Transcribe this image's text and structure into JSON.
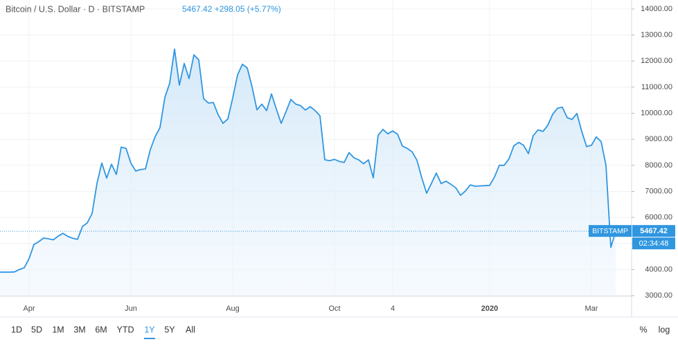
{
  "header": {
    "title": "Bitcoin / U.S. Dollar · D · BITSTAMP",
    "readout": "5467.42  +298.05 (+5.77%)"
  },
  "chart_data": {
    "type": "area",
    "color": "#2f96e0",
    "grid": true,
    "categories": [
      null,
      null,
      null,
      null,
      null,
      null,
      "Apr",
      null,
      null,
      null,
      null,
      null,
      null,
      null,
      null,
      null,
      null,
      null,
      null,
      null,
      null,
      null,
      null,
      null,
      null,
      null,
      null,
      "Jun",
      null,
      null,
      null,
      null,
      null,
      null,
      null,
      null,
      null,
      null,
      null,
      null,
      null,
      null,
      null,
      null,
      null,
      null,
      null,
      null,
      "Aug",
      null,
      null,
      null,
      null,
      null,
      null,
      null,
      null,
      null,
      null,
      null,
      null,
      null,
      null,
      null,
      null,
      null,
      null,
      null,
      null,
      "Oct",
      null,
      null,
      null,
      null,
      null,
      null,
      null,
      null,
      null,
      null,
      null,
      "4",
      null,
      null,
      null,
      null,
      null,
      null,
      null,
      null,
      null,
      null,
      null,
      null,
      null,
      null,
      null,
      null,
      null,
      null,
      null,
      "2020",
      null,
      null,
      null,
      null,
      null,
      null,
      null,
      null,
      null,
      null,
      null,
      null,
      null,
      null,
      null,
      null,
      null,
      null,
      null,
      null,
      "Mar",
      null,
      null,
      null,
      null,
      null
    ],
    "values": [
      3900,
      3900,
      3900,
      3910,
      4000,
      4070,
      4420,
      4960,
      5070,
      5210,
      5180,
      5140,
      5280,
      5390,
      5270,
      5200,
      5160,
      5650,
      5790,
      6150,
      7300,
      8090,
      7510,
      8040,
      7650,
      8700,
      8650,
      8080,
      7780,
      7840,
      7860,
      8600,
      9100,
      9450,
      10600,
      11150,
      12460,
      11080,
      11910,
      11330,
      12240,
      12050,
      10560,
      10390,
      10410,
      9940,
      9610,
      9780,
      10580,
      11470,
      11880,
      11740,
      11010,
      10130,
      10350,
      10100,
      10740,
      10160,
      9610,
      10060,
      10530,
      10350,
      10290,
      10120,
      10250,
      10100,
      9900,
      8210,
      8180,
      8230,
      8150,
      8110,
      8490,
      8290,
      8210,
      8060,
      8210,
      7520,
      9150,
      9380,
      9210,
      9320,
      9200,
      8740,
      8650,
      8520,
      8200,
      7520,
      6930,
      7310,
      7700,
      7300,
      7390,
      7270,
      7140,
      6850,
      7010,
      7250,
      7200,
      7210,
      7220,
      7230,
      7550,
      8000,
      8000,
      8250,
      8750,
      8880,
      8770,
      8450,
      9140,
      9360,
      9300,
      9540,
      9960,
      10190,
      10230,
      9830,
      9760,
      9990,
      9300,
      8720,
      8770,
      9090,
      8910,
      8000,
      4850,
      5467.42
    ],
    "ylim": [
      2975,
      14345
    ],
    "yticks": [
      {
        "value": 3000,
        "label": "3000.00"
      },
      {
        "value": 4000,
        "label": "4000.00"
      },
      {
        "value": 5000,
        "label": "5000.00"
      },
      {
        "value": 6000,
        "label": "6000.00"
      },
      {
        "value": 7000,
        "label": "7000.00"
      },
      {
        "value": 8000,
        "label": "8000.00"
      },
      {
        "value": 9000,
        "label": "9000.00"
      },
      {
        "value": 10000,
        "label": "10000.00"
      },
      {
        "value": 11000,
        "label": "11000.00"
      },
      {
        "value": 12000,
        "label": "12000.00"
      },
      {
        "value": 13000,
        "label": "13000.00"
      },
      {
        "value": 14000,
        "label": "14000.00"
      }
    ],
    "price_tag": {
      "exchange": "BITSTAMP",
      "value": 5467.42,
      "label": "5467.42",
      "countdown": "02:34:48"
    }
  },
  "toolbar": {
    "ranges": [
      "1D",
      "5D",
      "1M",
      "3M",
      "6M",
      "YTD",
      "1Y",
      "5Y",
      "All"
    ],
    "selected": 6,
    "options": [
      "%",
      "log"
    ]
  }
}
